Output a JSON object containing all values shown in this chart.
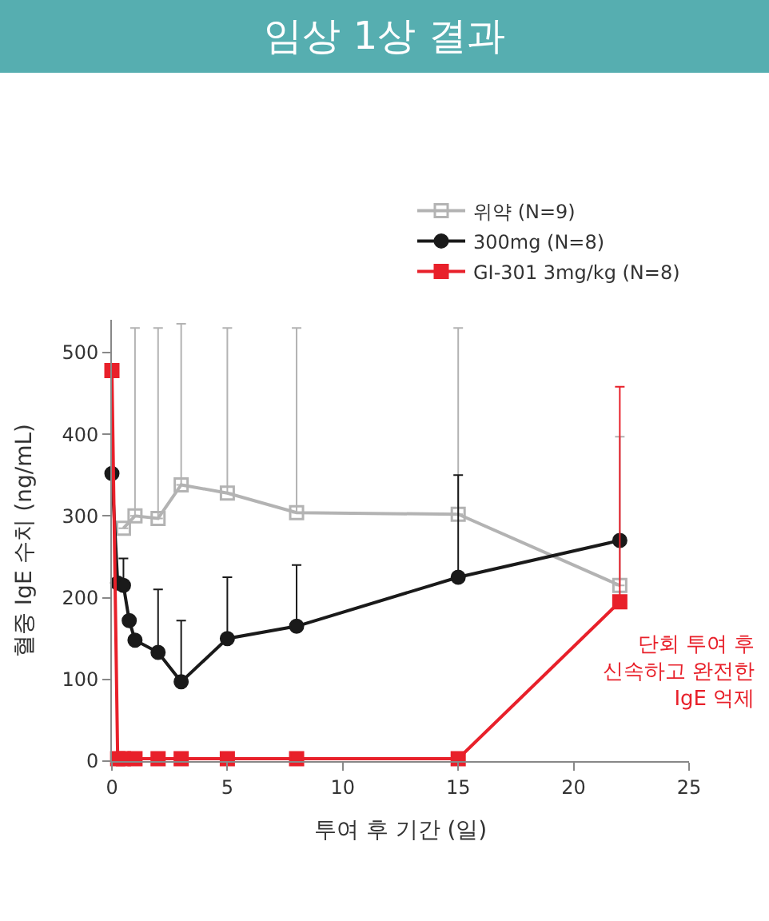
{
  "chart_data": {
    "type": "line",
    "title": "임상 1상 결과",
    "xlabel": "투여 후 기간 (일)",
    "ylabel": "혈중 IgE 수치 (ng/mL)",
    "xlim": [
      0,
      25
    ],
    "xticks": [
      0,
      5,
      10,
      15,
      20,
      25
    ],
    "ylim": [
      0,
      540
    ],
    "yticks": [
      0,
      100,
      200,
      300,
      400,
      500
    ],
    "legend": "top right",
    "series": [
      {
        "name": "위약 (N=9)",
        "color": "#b3b3b3",
        "marker": "square-open",
        "x": [
          0.5,
          1,
          2,
          3,
          5,
          8,
          15,
          22
        ],
        "values": [
          285,
          300,
          297,
          338,
          328,
          304,
          302,
          215
        ],
        "errors": [
          null,
          [
            300,
            530
          ],
          [
            297,
            530
          ],
          [
            338,
            535
          ],
          [
            328,
            530
          ],
          [
            304,
            530
          ],
          [
            302,
            530
          ],
          [
            215,
            397
          ]
        ]
      },
      {
        "name": "300mg (N=8)",
        "color": "#1a1a1a",
        "marker": "circle",
        "x": [
          0,
          0.25,
          0.5,
          0.75,
          1,
          2,
          3,
          5,
          8,
          15,
          22
        ],
        "values": [
          352,
          218,
          215,
          172,
          148,
          133,
          97,
          150,
          165,
          225,
          270
        ],
        "errors": [
          null,
          null,
          [
            215,
            248
          ],
          null,
          null,
          [
            133,
            210
          ],
          [
            97,
            172
          ],
          [
            150,
            225
          ],
          [
            165,
            240
          ],
          [
            225,
            350
          ],
          null
        ]
      },
      {
        "name": "GI-301 3mg/kg (N=8)",
        "color": "#e8202a",
        "marker": "square",
        "x": [
          0,
          0.25,
          0.5,
          1,
          2,
          3,
          5,
          8,
          15,
          22
        ],
        "values": [
          478,
          3,
          3,
          3,
          3,
          3,
          3,
          3,
          3,
          195
        ],
        "errors": [
          null,
          null,
          null,
          null,
          null,
          null,
          null,
          null,
          null,
          [
            195,
            458
          ]
        ]
      }
    ],
    "annotations": [
      "단회 투여 후\n신속하고 완전한\nIgE 억제"
    ]
  }
}
